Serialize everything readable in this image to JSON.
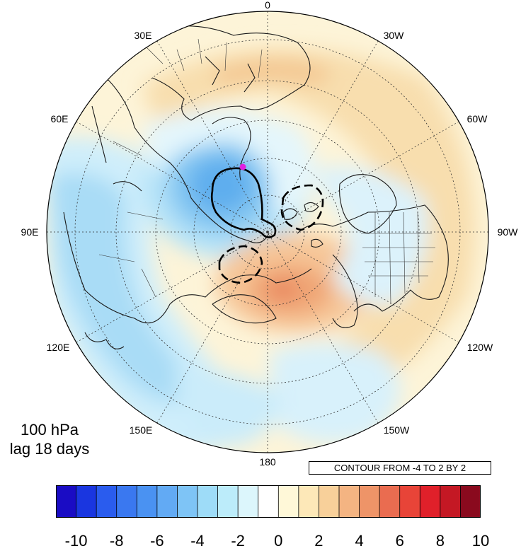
{
  "map": {
    "projection": "north polar stereographic",
    "lon_labels": [
      {
        "text": "0"
      },
      {
        "text": "30W"
      },
      {
        "text": "60W"
      },
      {
        "text": "90W"
      },
      {
        "text": "120W"
      },
      {
        "text": "150W"
      },
      {
        "text": "180"
      },
      {
        "text": "150E"
      },
      {
        "text": "120E"
      },
      {
        "text": "90E"
      },
      {
        "text": "60E"
      },
      {
        "text": "30E"
      }
    ],
    "contour_note": "CONTOUR FROM -4 TO 2 BY 2",
    "marker_color": "#e020e0"
  },
  "title": {
    "line1": "100 hPa",
    "line2": "lag 18 days"
  },
  "colorbar": {
    "levels": [
      "-10",
      "-8",
      "-6",
      "-4",
      "-2",
      "0",
      "2",
      "4",
      "6",
      "8",
      "10"
    ],
    "colors": [
      "#1a0cc4",
      "#1a36e0",
      "#2a5cee",
      "#3a78f0",
      "#4a92f2",
      "#62aaf4",
      "#7ec4f6",
      "#9edcf8",
      "#bcecfa",
      "#dcf6fc",
      "#ffffff",
      "#fff8d8",
      "#fde8b8",
      "#f8d09a",
      "#f4b482",
      "#ee9468",
      "#ea6c50",
      "#e84438",
      "#e0202a",
      "#c41824",
      "#8a0a1e"
    ]
  }
}
